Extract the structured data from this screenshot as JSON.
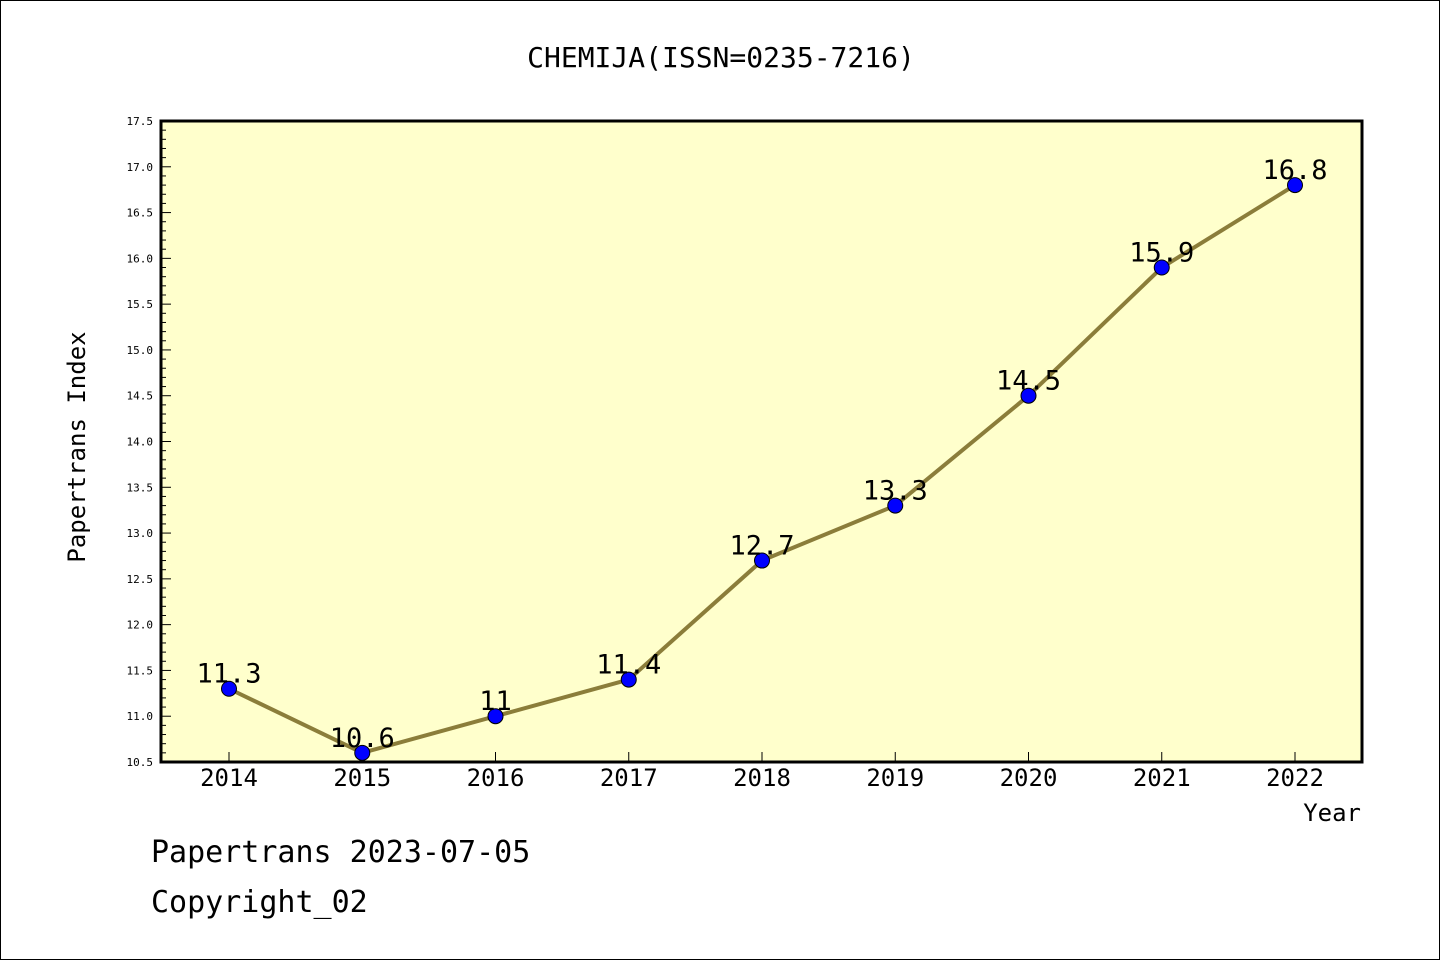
{
  "chart_data": {
    "type": "line",
    "title": "CHEMIJA(ISSN=0235-7216)",
    "xlabel": "Year",
    "ylabel": "Papertrans Index",
    "x": [
      "2014",
      "2015",
      "2016",
      "2017",
      "2018",
      "2019",
      "2020",
      "2021",
      "2022"
    ],
    "series": [
      {
        "values": [
          11.3,
          10.6,
          11,
          11.4,
          12.7,
          13.3,
          14.5,
          15.9,
          16.8
        ],
        "labels": [
          "11.3",
          "10.6",
          "11",
          "11.4",
          "12.7",
          "13.3",
          "14.5",
          "15.9",
          "16.8"
        ]
      }
    ],
    "ylim": [
      10.5,
      17.5
    ],
    "yticks": [
      "10.5",
      "11.0",
      "11.5",
      "12.0",
      "12.5",
      "13.0",
      "13.5",
      "14.0",
      "14.5",
      "15.0",
      "15.5",
      "16.0",
      "16.5",
      "17.0",
      "17.5"
    ],
    "grid": false,
    "colors": {
      "plot_background": "#ffffcc",
      "line": "#8b7d3a",
      "marker": "#0000ff"
    }
  },
  "footer": {
    "source": "Papertrans 2023-07-05",
    "copyright": "Copyright_02"
  }
}
